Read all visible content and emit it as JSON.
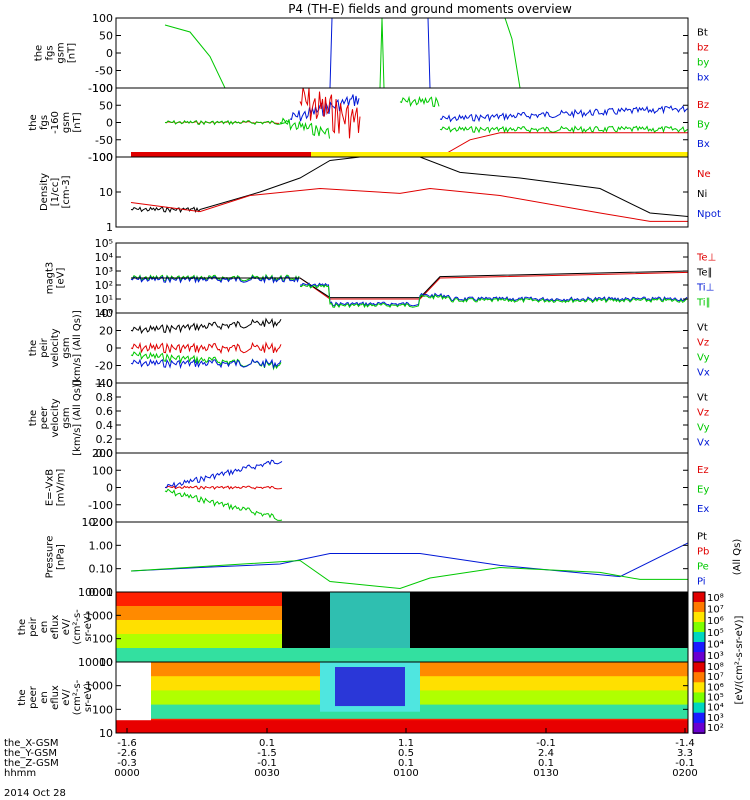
{
  "title": "P4 (TH-E) fields and ground moments overview",
  "colors": {
    "black": "#000000",
    "red": "#e00000",
    "green": "#00c800",
    "blue": "#0018d6",
    "yellow": "#ffef00",
    "bar_red": "#e00000"
  },
  "chart_data": [
    {
      "type": "line",
      "panel": "fgs",
      "ylabel": [
        "the",
        "fgs",
        "gsm",
        "[nT]"
      ],
      "yticks": [
        "100",
        "50",
        "0",
        "-50",
        "-100"
      ],
      "ylim": [
        -100,
        100
      ],
      "legend": [
        {
          "name": "Bt",
          "color": "black"
        },
        {
          "name": "bz",
          "color": "red"
        },
        {
          "name": "by",
          "color": "green"
        },
        {
          "name": "bx",
          "color": "blue"
        }
      ]
    },
    {
      "type": "line",
      "panel": "fgs-no-offset",
      "ylabel": [
        "the",
        "fgs",
        "-160",
        "gsm",
        "[nT]"
      ],
      "yticks": [
        "100",
        "50",
        "0",
        "-50",
        "-100"
      ],
      "ylim": [
        -100,
        100
      ],
      "legend": [
        {
          "name": "Bz",
          "color": "red"
        },
        {
          "name": "By",
          "color": "green"
        },
        {
          "name": "Bx",
          "color": "blue"
        }
      ]
    },
    {
      "type": "line",
      "panel": "density",
      "ylabel": [
        "Density",
        "[1/cc]",
        "[cm-3]"
      ],
      "yticks": [
        "100",
        "10",
        "1"
      ],
      "yscale": "log",
      "legend": [
        {
          "name": "Ne",
          "color": "red"
        },
        {
          "name": "Ni",
          "color": "black"
        },
        {
          "name": "Npot",
          "color": "blue"
        }
      ]
    },
    {
      "type": "line",
      "panel": "temperature",
      "ylabel": [
        "magt3",
        "[eV]"
      ],
      "yticks": [
        "10⁵",
        "10⁴",
        "10³",
        "10²",
        "10¹",
        "10⁰"
      ],
      "yscale": "log",
      "legend": [
        {
          "name": "Te⊥",
          "color": "red"
        },
        {
          "name": "Te∥",
          "color": "black"
        },
        {
          "name": "Ti⊥",
          "color": "blue"
        },
        {
          "name": "Ti∥",
          "color": "green"
        }
      ]
    },
    {
      "type": "line",
      "panel": "peir-velocity",
      "ylabel": [
        "the",
        "peir",
        "velocity",
        "gsm",
        "[km/s] (All Qs)]"
      ],
      "yticks": [
        "40",
        "20",
        "0",
        "-20",
        "-40"
      ],
      "ylim": [
        -40,
        40
      ],
      "legend": [
        {
          "name": "Vt",
          "color": "black"
        },
        {
          "name": "Vz",
          "color": "red"
        },
        {
          "name": "Vy",
          "color": "green"
        },
        {
          "name": "Vx",
          "color": "blue"
        }
      ]
    },
    {
      "type": "line",
      "panel": "peer-velocity",
      "ylabel": [
        "the",
        "peer",
        "velocity",
        "gsm",
        "[km/s] (All Qs)]"
      ],
      "yticks": [
        "1.0",
        "0.8",
        "0.6",
        "0.4",
        "0.2",
        "0.0"
      ],
      "ylim": [
        0,
        1
      ],
      "legend": [
        {
          "name": "Vt",
          "color": "black"
        },
        {
          "name": "Vz",
          "color": "red"
        },
        {
          "name": "Vy",
          "color": "green"
        },
        {
          "name": "Vx",
          "color": "blue"
        }
      ]
    },
    {
      "type": "line",
      "panel": "efield",
      "ylabel": [
        "E=-VxB",
        "[mV/m]"
      ],
      "yticks": [
        "200",
        "100",
        "0",
        "-100",
        "-200"
      ],
      "ylim": [
        -200,
        200
      ],
      "legend": [
        {
          "name": "Ez",
          "color": "red"
        },
        {
          "name": "Ey",
          "color": "green"
        },
        {
          "name": "Ex",
          "color": "blue"
        }
      ]
    },
    {
      "type": "line",
      "panel": "pressure",
      "ylabel": [
        "Pressure",
        "[nPa]"
      ],
      "yticks": [
        "10.00",
        "1.00",
        "0.10",
        "0.01"
      ],
      "yscale": "log",
      "right_label": "(All Qs)",
      "legend": [
        {
          "name": "Pt",
          "color": "black"
        },
        {
          "name": "Pb",
          "color": "red"
        },
        {
          "name": "Pe",
          "color": "green"
        },
        {
          "name": "Pi",
          "color": "blue"
        }
      ]
    },
    {
      "type": "heatmap",
      "panel": "peir-eflux",
      "ylabel": [
        "the",
        "peir",
        "en",
        "eflux",
        "eV/",
        "(cm²-s-",
        "sr-eV)"
      ],
      "yticks": [
        "10000",
        "1000",
        "100",
        "10"
      ],
      "yscale": "log"
    },
    {
      "type": "heatmap",
      "panel": "peer-eflux",
      "ylabel": [
        "the",
        "peer",
        "en",
        "eflux",
        "eV/",
        "(cm²-s-",
        "sr-eV)"
      ],
      "yticks": [
        "10000",
        "1000",
        "100",
        "10"
      ],
      "yscale": "log"
    }
  ],
  "colorbar": {
    "top_ticks": [
      "10⁸",
      "10⁷",
      "10⁶",
      "10⁵",
      "10⁴",
      "10³"
    ],
    "bottom_ticks": [
      "10⁸",
      "10⁷",
      "10⁶",
      "10⁵",
      "10⁴",
      "10³",
      "10²"
    ],
    "label": "[eV/(cm²-s-sr-eV)]"
  },
  "footer": {
    "rows": [
      {
        "label": "the_X-GSM",
        "values": [
          "-1.6",
          "0.1",
          "1.1",
          "-0.1",
          "-1.4"
        ]
      },
      {
        "label": "the_Y-GSM",
        "values": [
          "-2.6",
          "-1.5",
          "0.5",
          "2.4",
          "3.3"
        ]
      },
      {
        "label": "the_Z-GSM",
        "values": [
          "-0.3",
          "-0.1",
          "0.1",
          "0.1",
          "-0.1"
        ]
      },
      {
        "label": "hhmm",
        "values": [
          "0000",
          "0030",
          "0100",
          "0130",
          "0200"
        ]
      }
    ],
    "date": "2014 Oct 28"
  }
}
